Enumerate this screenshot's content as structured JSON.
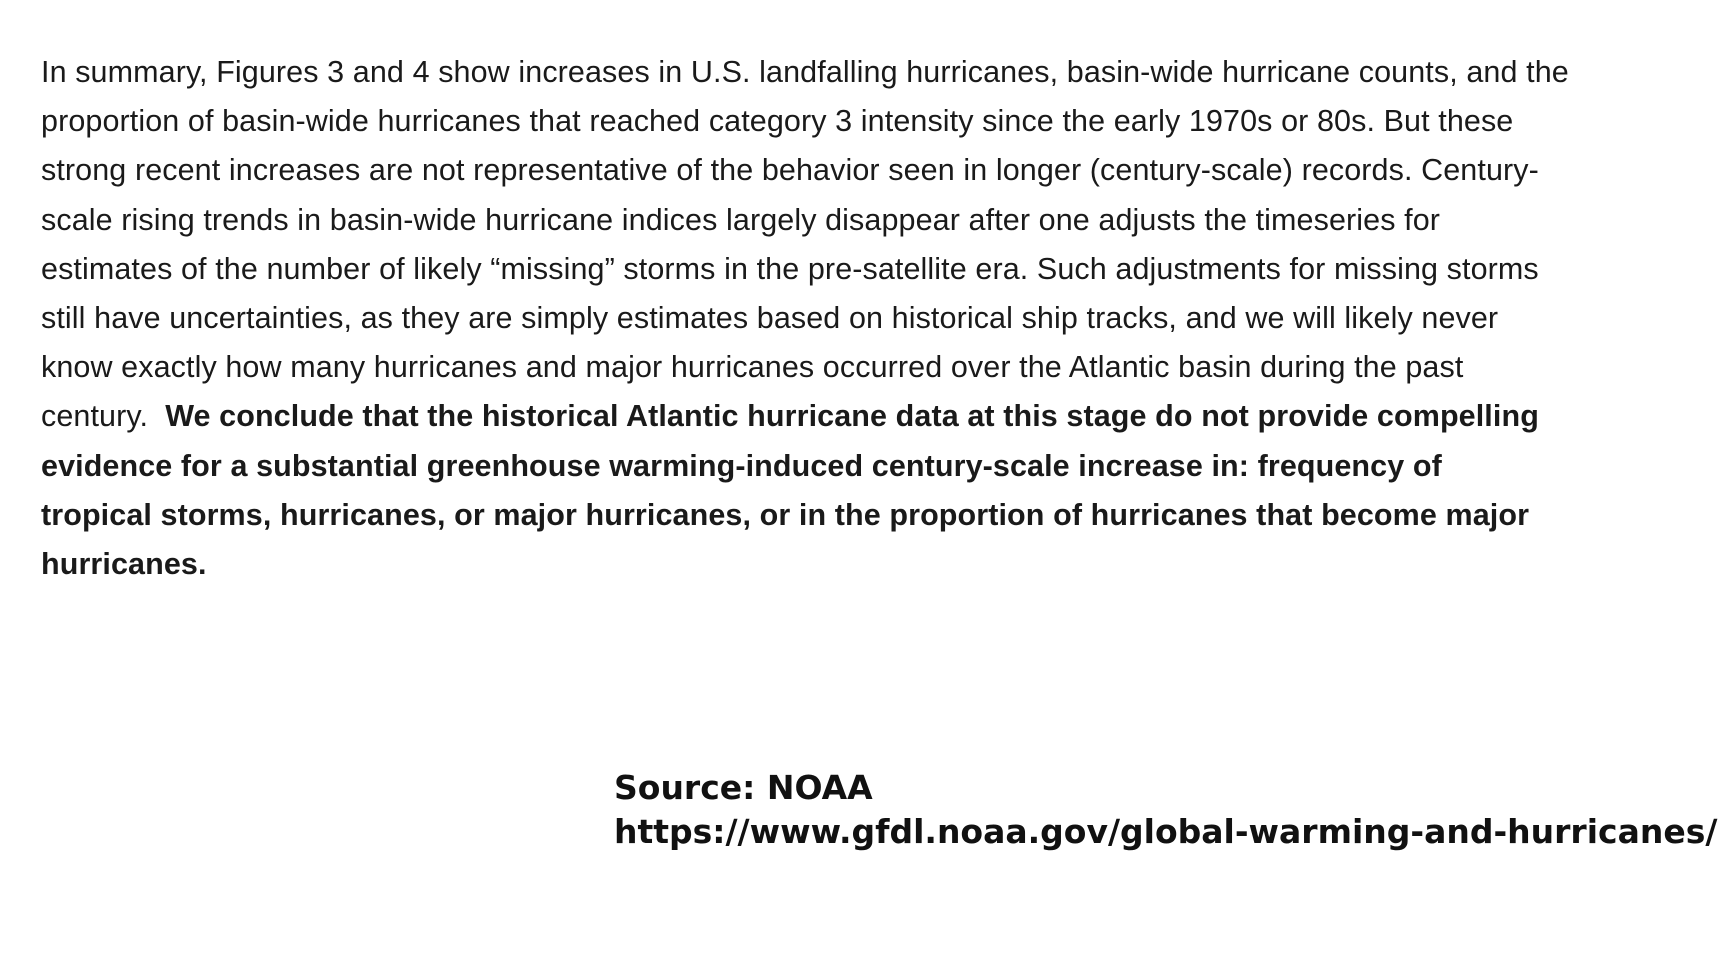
{
  "summary": {
    "lines": [
      {
        "text": "In summary, Figures 3 and 4 show increases in U.S. landfalling hurricanes, basin-wide hurricane counts, and the",
        "bold": ""
      },
      {
        "text": "proportion of basin-wide hurricanes that reached category 3 intensity since the early 1970s or 80s.  But these",
        "bold": ""
      },
      {
        "text": "strong recent increases are not representative of the behavior seen in longer (century-scale) records. Century-",
        "bold": ""
      },
      {
        "text": "scale rising trends in basin-wide hurricane indices largely disappear after one adjusts the timeseries for",
        "bold": ""
      },
      {
        "text": "estimates of the number of likely “missing” storms in the pre-satellite era.  Such adjustments for missing storms",
        "bold": ""
      },
      {
        "text": "still have uncertainties, as they are simply estimates based on historical ship tracks, and we will likely never",
        "bold": ""
      },
      {
        "text": "know exactly how many hurricanes and major hurricanes occurred over the Atlantic basin during the past",
        "bold": ""
      },
      {
        "text": "century.  ",
        "bold": "We conclude that the historical Atlantic hurricane data at this stage do not provide compelling"
      },
      {
        "text": "",
        "bold": "evidence for a substantial greenhouse warming-induced century-scale increase in:  frequency of"
      },
      {
        "text": "",
        "bold": "tropical storms, hurricanes, or major hurricanes, or in the proportion of hurricanes that become major"
      },
      {
        "text": "",
        "bold": "hurricanes."
      }
    ]
  },
  "source": {
    "label": "Source: NOAA",
    "url": "https://www.gfdl.noaa.gov/global-warming-and-hurricanes/"
  }
}
